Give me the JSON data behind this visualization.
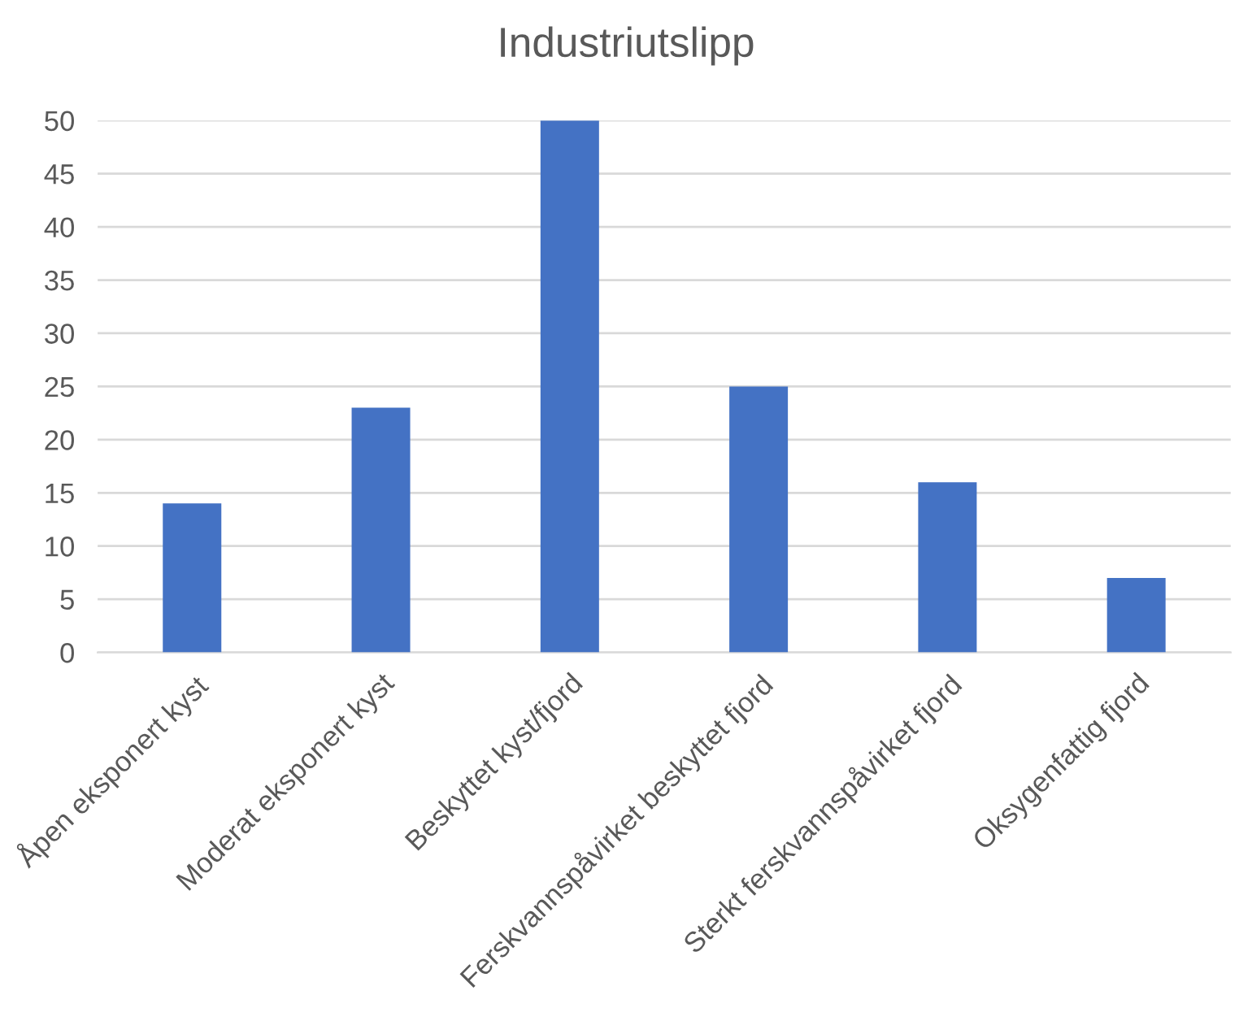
{
  "chart_data": {
    "type": "bar",
    "title": "Industriutslipp",
    "categories": [
      "Åpen eksponert kyst",
      "Moderat eksponert kyst",
      "Beskyttet kyst/fjord",
      "Ferskvannspåvirket beskyttet fjord",
      "Sterkt ferskvannspåvirket fjord",
      "Oksygenfattig fjord"
    ],
    "values": [
      14,
      23,
      50,
      25,
      16,
      7
    ],
    "color": "#4472c4",
    "ylim": [
      0,
      50
    ],
    "yticks": [
      0,
      5,
      10,
      15,
      20,
      25,
      30,
      35,
      40,
      45,
      50
    ],
    "grid": "y"
  }
}
